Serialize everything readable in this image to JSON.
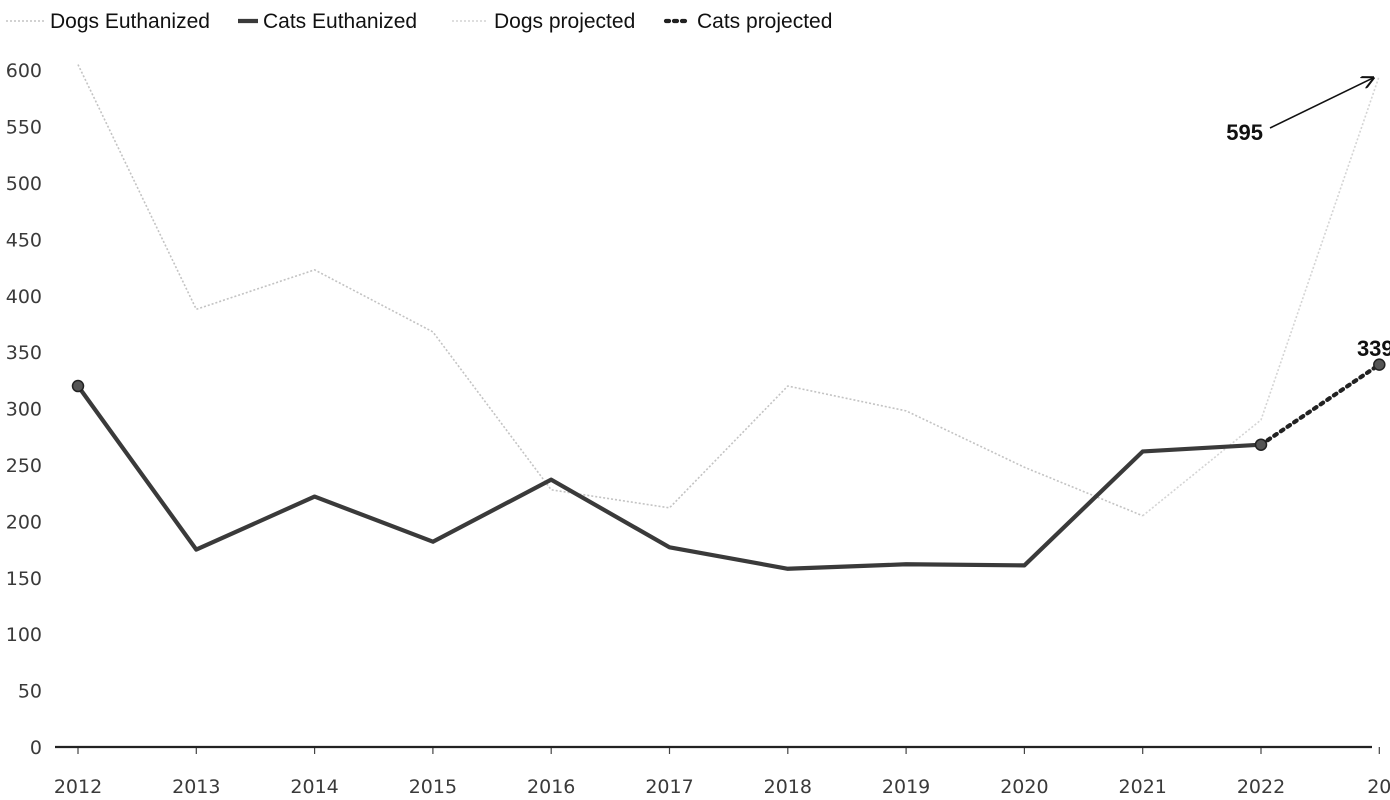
{
  "chart_data": {
    "type": "line",
    "categories": [
      "2012",
      "2013",
      "2014",
      "2015",
      "2016",
      "2017",
      "2018",
      "2019",
      "2020",
      "2021",
      "2022",
      "20"
    ],
    "ylim": [
      0,
      620
    ],
    "yticks": [
      0,
      50,
      100,
      150,
      200,
      250,
      300,
      350,
      400,
      450,
      500,
      550,
      600
    ],
    "series": [
      {
        "name": "Dogs Euthanized",
        "style": "faint-dotted",
        "color": "#bdbdbd",
        "values": [
          605,
          388,
          423,
          368,
          228,
          212,
          320,
          298,
          248,
          205,
          null,
          null
        ]
      },
      {
        "name": "Cats Euthanized",
        "style": "solid",
        "color": "#3a3a3a",
        "values": [
          320,
          175,
          222,
          182,
          237,
          177,
          158,
          162,
          161,
          262,
          268,
          null
        ]
      },
      {
        "name": "Dogs projected",
        "style": "faint-dotted",
        "color": "#cfcfcf",
        "values": [
          null,
          null,
          null,
          null,
          null,
          null,
          null,
          null,
          null,
          205,
          290,
          595
        ]
      },
      {
        "name": "Cats projected",
        "style": "bold-dotted",
        "color": "#222222",
        "values": [
          null,
          null,
          null,
          null,
          null,
          null,
          null,
          null,
          null,
          null,
          268,
          339
        ]
      }
    ],
    "annotations": [
      {
        "text": "595",
        "series": "Dogs projected",
        "index": 11
      },
      {
        "text": "339",
        "series": "Cats projected",
        "index": 11
      }
    ],
    "legend": {
      "position": "top-left"
    },
    "grid": false
  }
}
